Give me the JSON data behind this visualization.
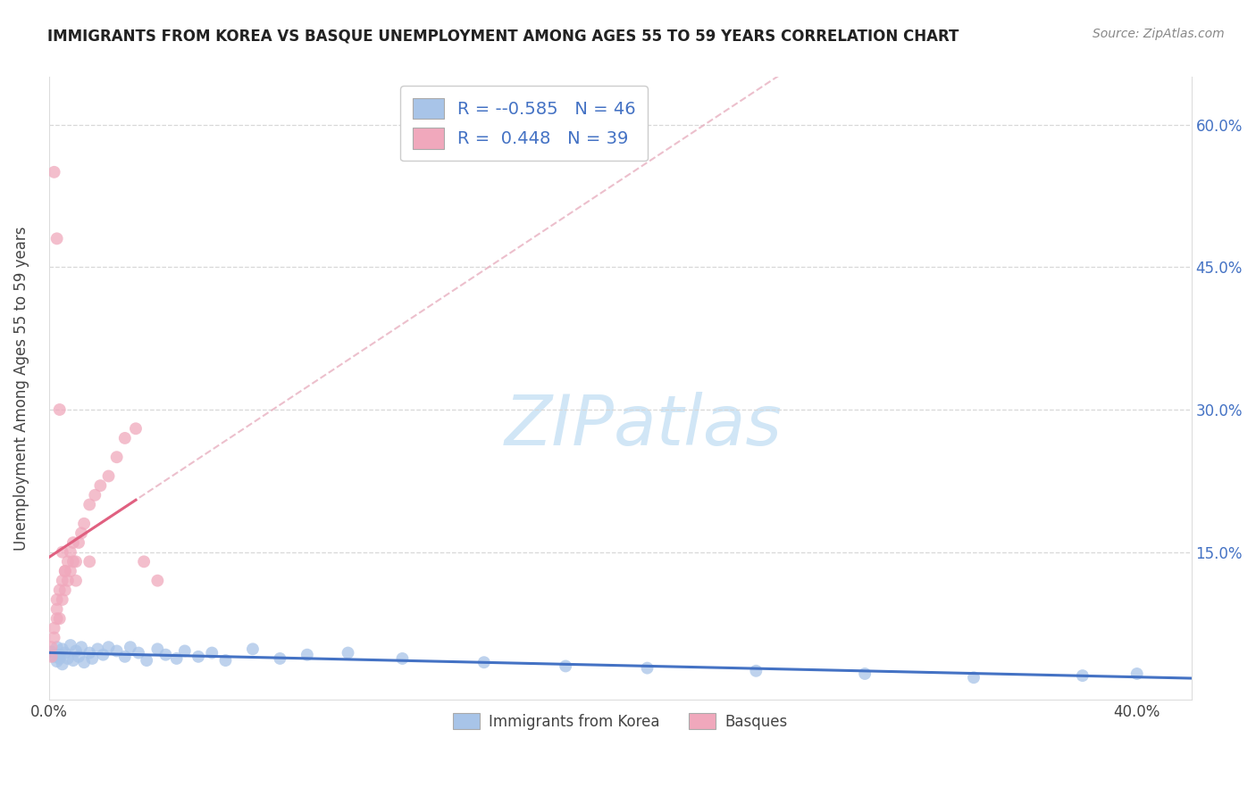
{
  "title": "IMMIGRANTS FROM KOREA VS BASQUE UNEMPLOYMENT AMONG AGES 55 TO 59 YEARS CORRELATION CHART",
  "source": "Source: ZipAtlas.com",
  "ylabel": "Unemployment Among Ages 55 to 59 years",
  "watermark": "ZIPatlas",
  "legend_label_blue": "Immigrants from Korea",
  "legend_label_pink": "Basques",
  "blue_color": "#a8c4e8",
  "pink_color": "#f0a8bc",
  "blue_line_color": "#4472c4",
  "pink_line_color": "#e06080",
  "pink_dash_color": "#e8b0c0",
  "xlim": [
    0.0,
    0.42
  ],
  "ylim": [
    -0.005,
    0.65
  ],
  "blue_R": "-0.585",
  "blue_N": "46",
  "pink_R": "0.448",
  "pink_N": "39",
  "blue_scatter_x": [
    0.001,
    0.002,
    0.003,
    0.003,
    0.004,
    0.004,
    0.005,
    0.005,
    0.006,
    0.007,
    0.008,
    0.009,
    0.01,
    0.011,
    0.012,
    0.013,
    0.015,
    0.016,
    0.018,
    0.02,
    0.022,
    0.025,
    0.028,
    0.03,
    0.033,
    0.036,
    0.04,
    0.043,
    0.047,
    0.05,
    0.055,
    0.06,
    0.065,
    0.075,
    0.085,
    0.095,
    0.11,
    0.13,
    0.16,
    0.19,
    0.22,
    0.26,
    0.3,
    0.34,
    0.38,
    0.4
  ],
  "blue_scatter_y": [
    0.045,
    0.04,
    0.05,
    0.035,
    0.038,
    0.042,
    0.048,
    0.032,
    0.044,
    0.038,
    0.052,
    0.036,
    0.046,
    0.04,
    0.05,
    0.034,
    0.044,
    0.038,
    0.048,
    0.042,
    0.05,
    0.046,
    0.04,
    0.05,
    0.044,
    0.036,
    0.048,
    0.042,
    0.038,
    0.046,
    0.04,
    0.044,
    0.036,
    0.048,
    0.038,
    0.042,
    0.044,
    0.038,
    0.034,
    0.03,
    0.028,
    0.025,
    0.022,
    0.018,
    0.02,
    0.022
  ],
  "pink_scatter_x": [
    0.001,
    0.001,
    0.002,
    0.002,
    0.003,
    0.003,
    0.003,
    0.004,
    0.004,
    0.005,
    0.005,
    0.006,
    0.006,
    0.007,
    0.007,
    0.008,
    0.008,
    0.009,
    0.009,
    0.01,
    0.011,
    0.012,
    0.013,
    0.015,
    0.017,
    0.019,
    0.022,
    0.025,
    0.028,
    0.032,
    0.002,
    0.003,
    0.004,
    0.005,
    0.006,
    0.01,
    0.015,
    0.035,
    0.04
  ],
  "pink_scatter_y": [
    0.04,
    0.05,
    0.06,
    0.07,
    0.08,
    0.09,
    0.1,
    0.11,
    0.08,
    0.1,
    0.12,
    0.11,
    0.13,
    0.12,
    0.14,
    0.13,
    0.15,
    0.14,
    0.16,
    0.14,
    0.16,
    0.17,
    0.18,
    0.2,
    0.21,
    0.22,
    0.23,
    0.25,
    0.27,
    0.28,
    0.55,
    0.48,
    0.3,
    0.15,
    0.13,
    0.12,
    0.14,
    0.14,
    0.12
  ]
}
